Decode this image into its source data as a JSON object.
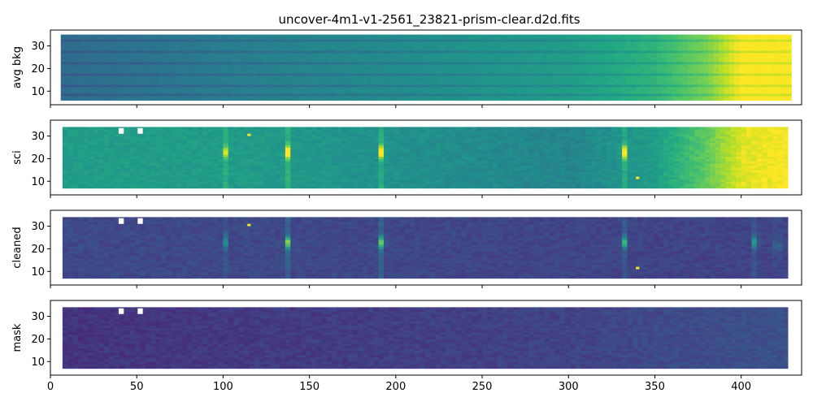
{
  "chart_data": {
    "title": "uncover-4m1-v1-2561_23821-prism-clear.d2d.fits",
    "type": "heatmap",
    "colormap": "viridis",
    "shared_x": {
      "range": [
        0,
        435
      ],
      "ticks": [
        0,
        50,
        100,
        150,
        200,
        250,
        300,
        350,
        400
      ],
      "tick_labels": [
        "0",
        "50",
        "100",
        "150",
        "200",
        "250",
        "300",
        "350",
        "400"
      ]
    },
    "panels": [
      {
        "ylabel": "avg bkg",
        "ylim": [
          4,
          37
        ],
        "yticks": [
          10,
          20,
          30
        ],
        "ytick_labels": [
          "10",
          "20",
          "30"
        ],
        "data_x_range": [
          6,
          427
        ],
        "data_y_range": [
          6,
          35
        ],
        "background_gradient": {
          "x": [
            6,
            100,
            200,
            300,
            350,
            380,
            400,
            427
          ],
          "level": [
            0.35,
            0.42,
            0.48,
            0.55,
            0.65,
            0.8,
            1.0,
            1.0
          ]
        },
        "dark_rows": [
          8,
          12,
          17,
          22,
          27,
          32
        ]
      },
      {
        "ylabel": "sci",
        "ylim": [
          4,
          37
        ],
        "yticks": [
          10,
          20,
          30
        ],
        "ytick_labels": [
          "10",
          "20",
          "30"
        ],
        "data_x_range": [
          7,
          427
        ],
        "data_y_range": [
          7,
          34
        ],
        "emission_lines": [
          {
            "x": 101,
            "y": 23,
            "strength": 0.62
          },
          {
            "x": 137,
            "y": 23,
            "strength": 1.0
          },
          {
            "x": 192,
            "y": 23,
            "strength": 1.0
          },
          {
            "x": 332,
            "y": 23,
            "strength": 0.95
          }
        ],
        "hot_pixels": [
          [
            115,
            30
          ],
          [
            340,
            11
          ]
        ],
        "missing_pixels": [
          [
            41,
            32
          ],
          [
            52,
            32
          ]
        ],
        "background_gradient": {
          "x": [
            7,
            100,
            200,
            300,
            350,
            380,
            400,
            427
          ],
          "level": [
            0.55,
            0.55,
            0.5,
            0.45,
            0.55,
            0.75,
            0.95,
            1.0
          ]
        }
      },
      {
        "ylabel": "cleaned",
        "ylim": [
          4,
          37
        ],
        "yticks": [
          10,
          20,
          30
        ],
        "ytick_labels": [
          "10",
          "20",
          "30"
        ],
        "data_x_range": [
          7,
          427
        ],
        "data_y_range": [
          7,
          34
        ],
        "emission_lines": [
          {
            "x": 101,
            "y": 23,
            "strength": 0.45
          },
          {
            "x": 137,
            "y": 23,
            "strength": 0.95
          },
          {
            "x": 192,
            "y": 23,
            "strength": 0.9
          },
          {
            "x": 332,
            "y": 23,
            "strength": 0.7
          },
          {
            "x": 408,
            "y": 23,
            "strength": 0.55
          },
          {
            "x": 421,
            "y": 22,
            "strength": 0.45
          }
        ],
        "hot_pixels": [
          [
            115,
            30
          ],
          [
            340,
            11
          ]
        ],
        "missing_pixels": [
          [
            41,
            32
          ],
          [
            52,
            32
          ]
        ],
        "background_gradient": {
          "x": [
            7,
            427
          ],
          "level": [
            0.22,
            0.2
          ]
        }
      },
      {
        "ylabel": "mask",
        "ylim": [
          4,
          37
        ],
        "yticks": [
          10,
          20,
          30
        ],
        "ytick_labels": [
          "10",
          "20",
          "30"
        ],
        "data_x_range": [
          7,
          427
        ],
        "data_y_range": [
          7,
          34
        ],
        "missing_pixels": [
          [
            41,
            32
          ],
          [
            52,
            32
          ]
        ],
        "background_gradient": {
          "x": [
            7,
            300,
            427
          ],
          "level": [
            0.15,
            0.2,
            0.25
          ]
        }
      }
    ]
  }
}
